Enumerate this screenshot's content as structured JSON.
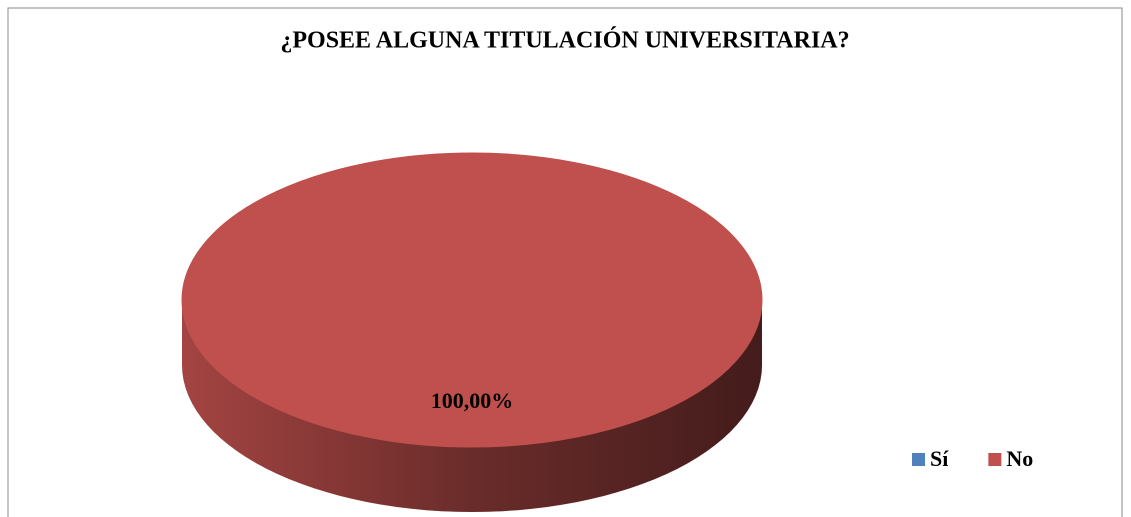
{
  "chart_data": {
    "type": "pie",
    "title": "¿POSEE ALGUNA TITULACIÓN UNIVERSITARIA?",
    "categories": [
      "Sí",
      "No"
    ],
    "values": [
      0,
      100
    ],
    "value_labels": [
      null,
      "100,00%"
    ],
    "colors": [
      "#4F81BD",
      "#C0504D"
    ],
    "legend": "right"
  }
}
